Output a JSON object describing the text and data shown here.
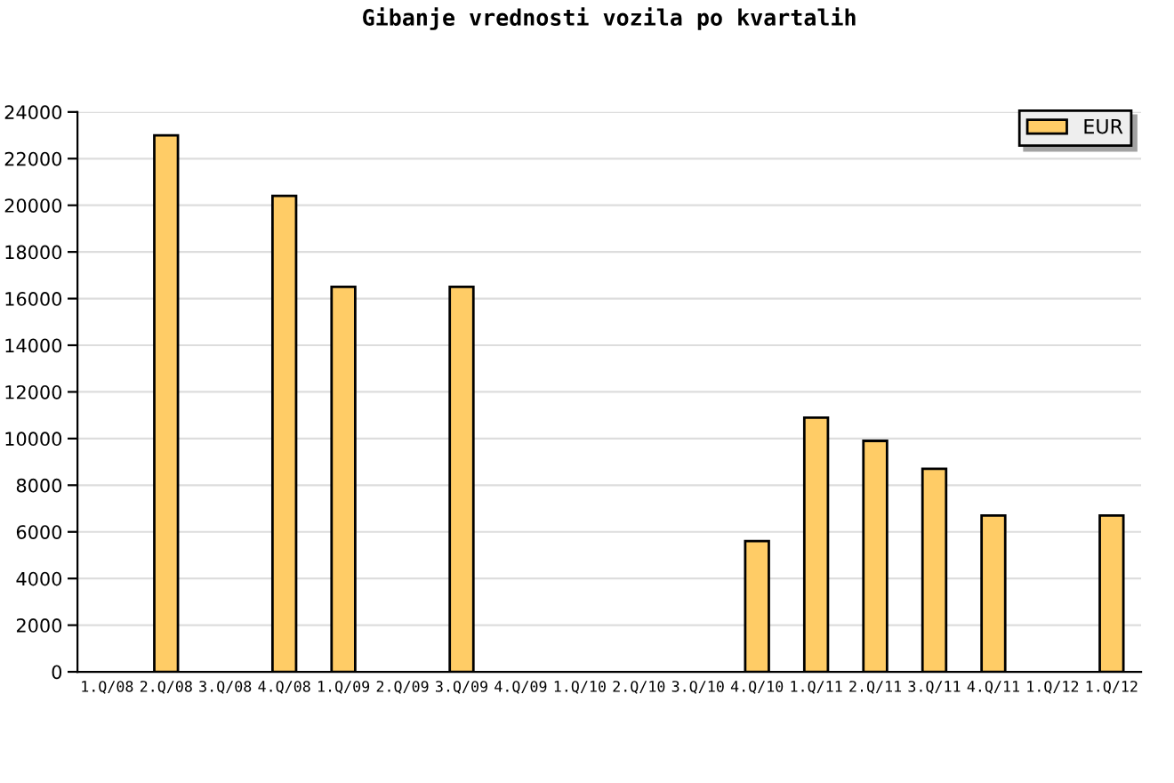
{
  "chart_data": {
    "type": "bar",
    "title": "Gibanje vrednosti vozila po kvartalih",
    "categories": [
      "1.Q/08",
      "2.Q/08",
      "3.Q/08",
      "4.Q/08",
      "1.Q/09",
      "2.Q/09",
      "3.Q/09",
      "4.Q/09",
      "1.Q/10",
      "2.Q/10",
      "3.Q/10",
      "4.Q/10",
      "1.Q/11",
      "2.Q/11",
      "3.Q/11",
      "4.Q/11",
      "1.Q/12",
      "1.Q/12"
    ],
    "series": [
      {
        "name": "EUR",
        "color": "#ffcc66",
        "values": [
          null,
          23000,
          null,
          20400,
          16500,
          null,
          16500,
          null,
          null,
          null,
          null,
          5600,
          10900,
          9900,
          8700,
          6700,
          null,
          6700
        ]
      }
    ],
    "ylim": [
      0,
      24000
    ],
    "yticks": [
      0,
      2000,
      4000,
      6000,
      8000,
      10000,
      12000,
      14000,
      16000,
      18000,
      20000,
      22000,
      24000
    ],
    "grid": "y",
    "legend": "top right"
  }
}
